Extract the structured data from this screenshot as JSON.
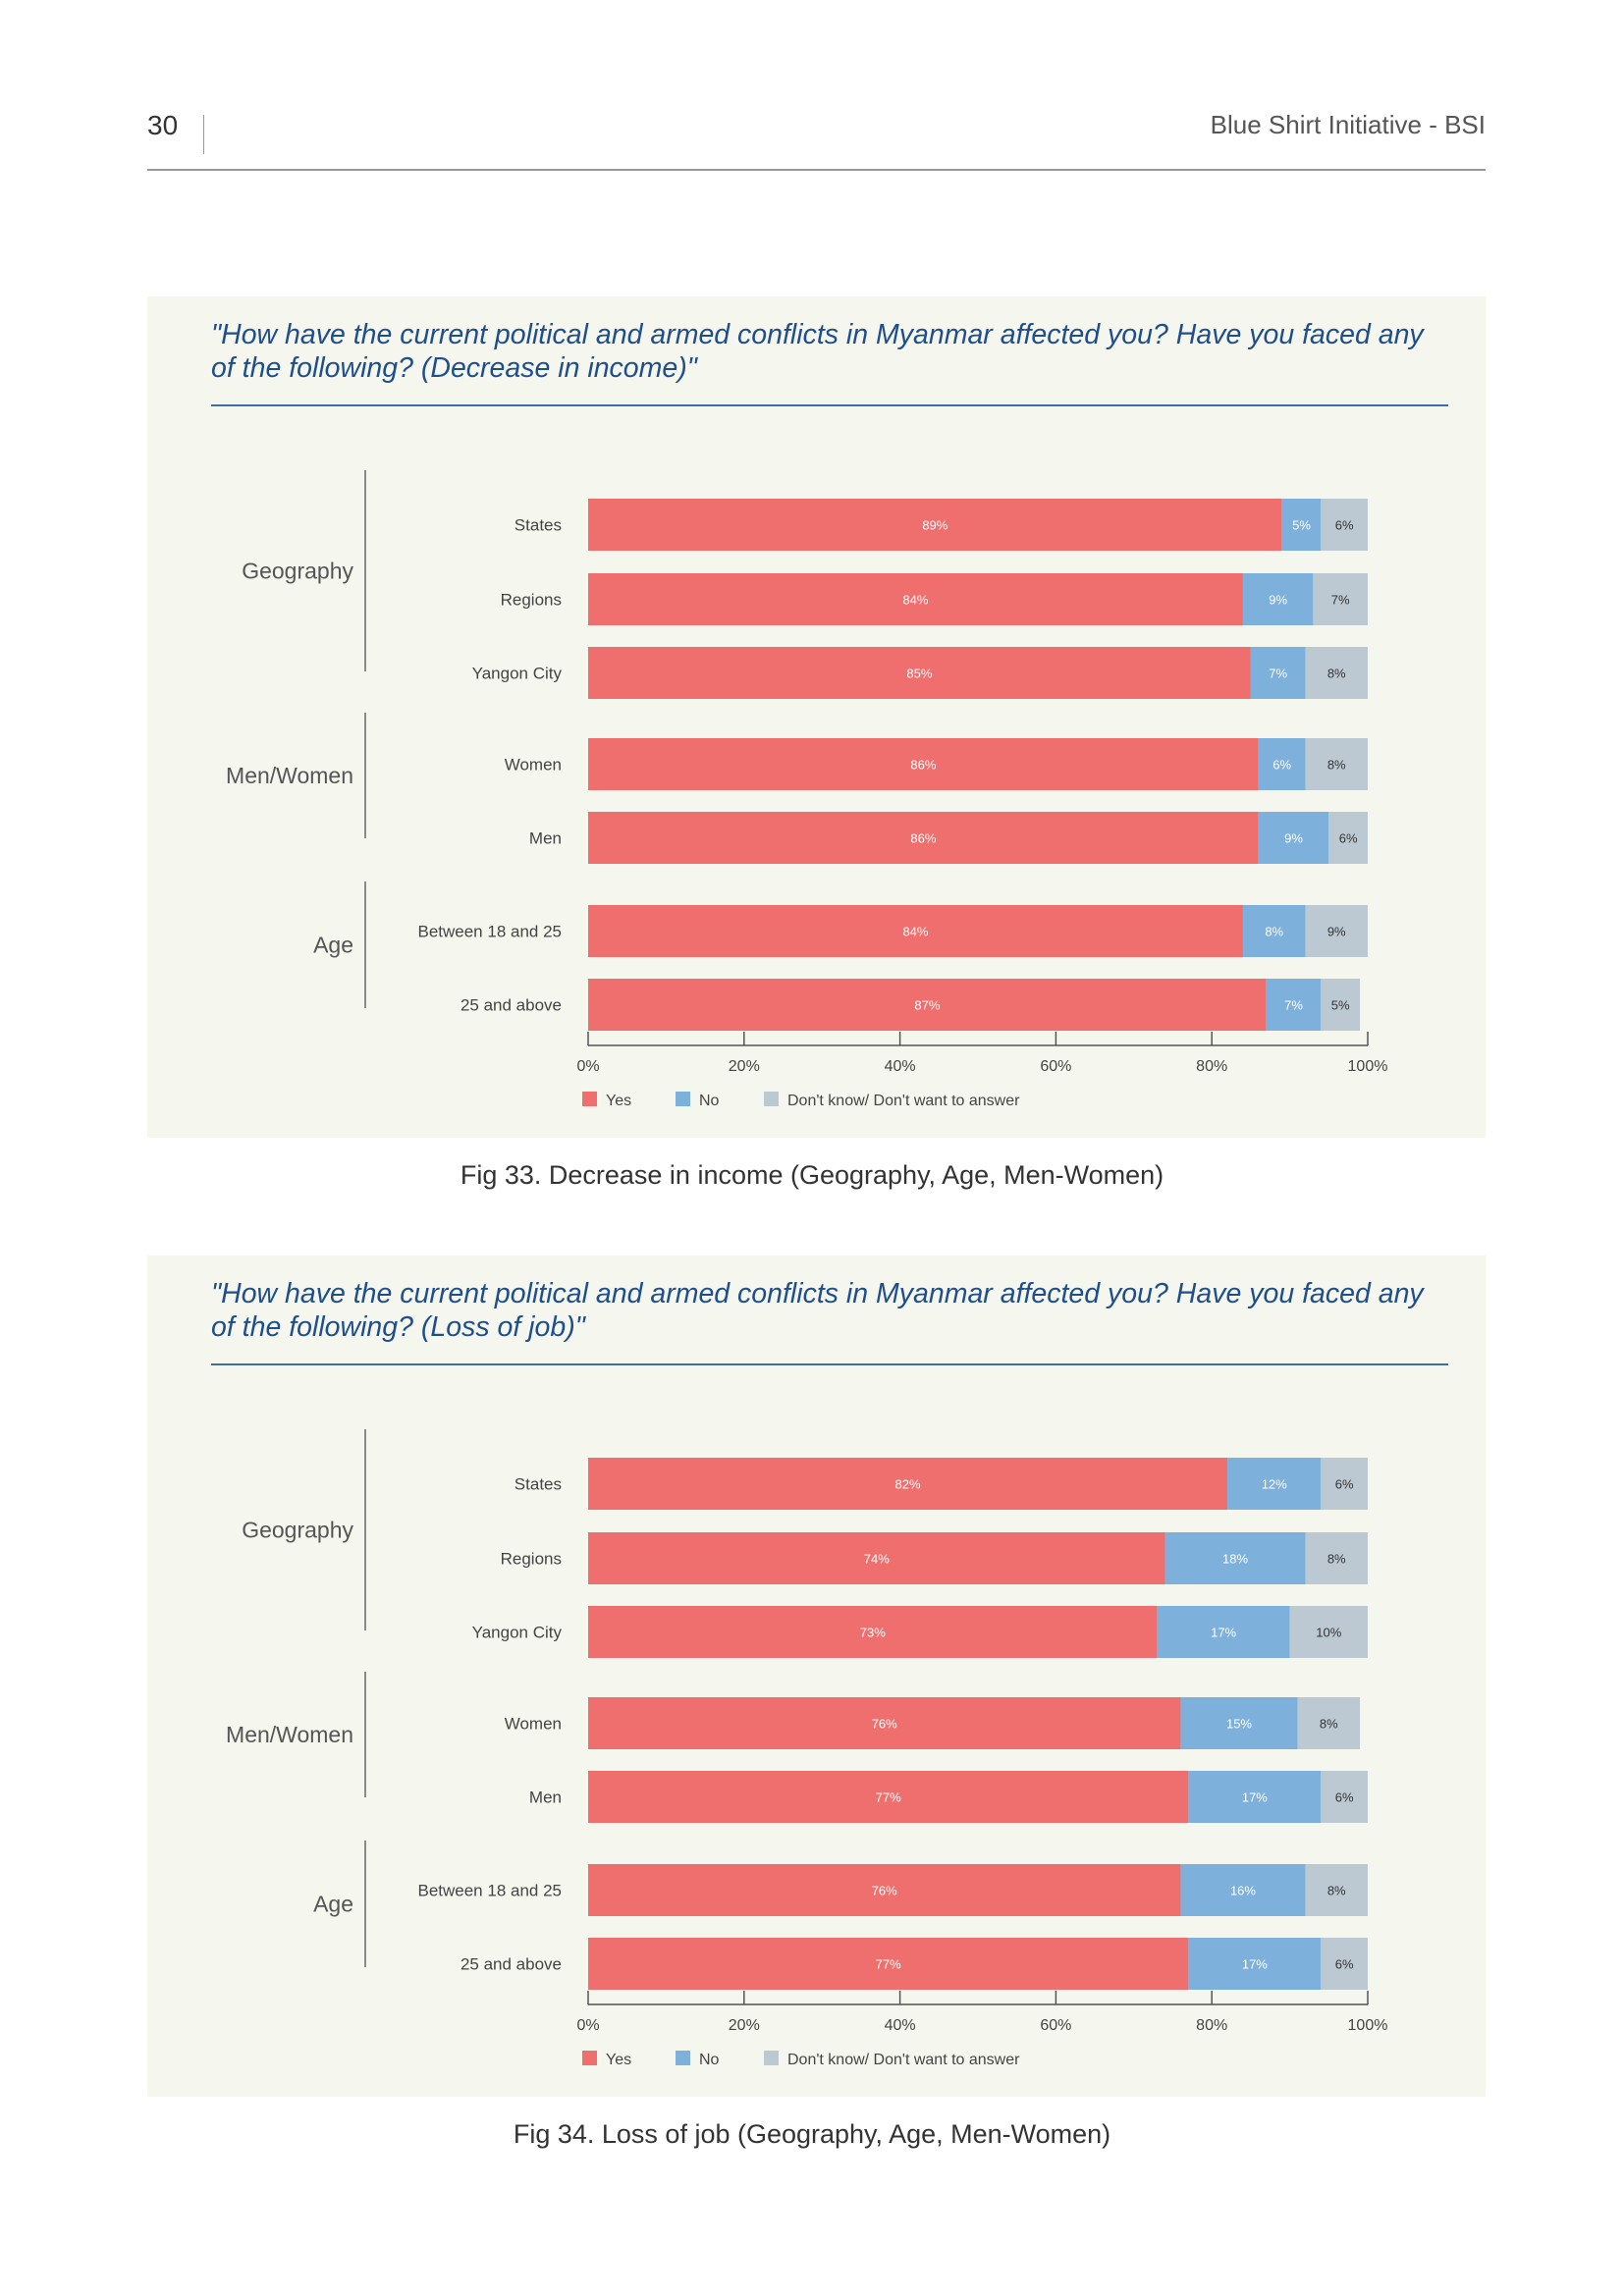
{
  "page_number": "30",
  "running_title": "Blue Shirt Initiative - BSI",
  "figures": [
    {
      "question": "\"How have the current political and armed conflicts in Myanmar affected you? Have you faced any of the following? (Decrease in income)\"",
      "caption": "Fig 33. Decrease in income (Geography, Age, Men-Women)"
    },
    {
      "question": "\"How have the current political and armed conflicts in Myanmar affected you? Have you faced any of the following? (Loss of job)\"",
      "caption": "Fig 34. Loss of job (Geography, Age, Men-Women)"
    }
  ],
  "chart_data": [
    {
      "type": "bar",
      "orientation": "horizontal",
      "stacked": true,
      "xlim": [
        0,
        100
      ],
      "x_ticks": [
        "0%",
        "20%",
        "40%",
        "60%",
        "80%",
        "100%"
      ],
      "legend_position": "bottom",
      "series_names": [
        "Yes",
        "No",
        "Don't know/ Don't want to answer"
      ],
      "colors": [
        "#ef6f6f",
        "#7eb0dc",
        "#bcc9d3"
      ],
      "groups": [
        {
          "name": "Geography",
          "rows": [
            {
              "label": "States",
              "values": [
                89,
                5,
                6
              ],
              "labels": [
                "89%",
                "5%",
                "6%"
              ]
            },
            {
              "label": "Regions",
              "values": [
                84,
                9,
                7
              ],
              "labels": [
                "84%",
                "9%",
                "7%"
              ]
            },
            {
              "label": "Yangon City",
              "values": [
                85,
                7,
                8
              ],
              "labels": [
                "85%",
                "7%",
                "8%"
              ]
            }
          ]
        },
        {
          "name": "Men/Women",
          "rows": [
            {
              "label": "Women",
              "values": [
                86,
                6,
                8
              ],
              "labels": [
                "86%",
                "6%",
                "8%"
              ]
            },
            {
              "label": "Men",
              "values": [
                86,
                9,
                6
              ],
              "labels": [
                "86%",
                "9%",
                "6%"
              ]
            }
          ]
        },
        {
          "name": "Age",
          "rows": [
            {
              "label": "Between 18 and 25",
              "values": [
                84,
                8,
                9
              ],
              "labels": [
                "84%",
                "8%",
                "9%"
              ]
            },
            {
              "label": "25 and above",
              "values": [
                87,
                7,
                5
              ],
              "labels": [
                "87%",
                "7%",
                "5%"
              ]
            }
          ]
        }
      ]
    },
    {
      "type": "bar",
      "orientation": "horizontal",
      "stacked": true,
      "xlim": [
        0,
        100
      ],
      "x_ticks": [
        "0%",
        "20%",
        "40%",
        "60%",
        "80%",
        "100%"
      ],
      "legend_position": "bottom",
      "series_names": [
        "Yes",
        "No",
        "Don't know/ Don't want to answer"
      ],
      "colors": [
        "#ef6f6f",
        "#7eb0dc",
        "#bcc9d3"
      ],
      "groups": [
        {
          "name": "Geography",
          "rows": [
            {
              "label": "States",
              "values": [
                82,
                12,
                6
              ],
              "labels": [
                "82%",
                "12%",
                "6%"
              ]
            },
            {
              "label": "Regions",
              "values": [
                74,
                18,
                8
              ],
              "labels": [
                "74%",
                "18%",
                "8%"
              ]
            },
            {
              "label": "Yangon City",
              "values": [
                73,
                17,
                10
              ],
              "labels": [
                "73%",
                "17%",
                "10%"
              ]
            }
          ]
        },
        {
          "name": "Men/Women",
          "rows": [
            {
              "label": "Women",
              "values": [
                76,
                15,
                8
              ],
              "labels": [
                "76%",
                "15%",
                "8%"
              ]
            },
            {
              "label": "Men",
              "values": [
                77,
                17,
                6
              ],
              "labels": [
                "77%",
                "17%",
                "6%"
              ]
            }
          ]
        },
        {
          "name": "Age",
          "rows": [
            {
              "label": "Between 18 and 25",
              "values": [
                76,
                16,
                8
              ],
              "labels": [
                "76%",
                "16%",
                "8%"
              ]
            },
            {
              "label": "25 and above",
              "values": [
                77,
                17,
                6
              ],
              "labels": [
                "77%",
                "17%",
                "6%"
              ]
            }
          ]
        }
      ]
    }
  ]
}
